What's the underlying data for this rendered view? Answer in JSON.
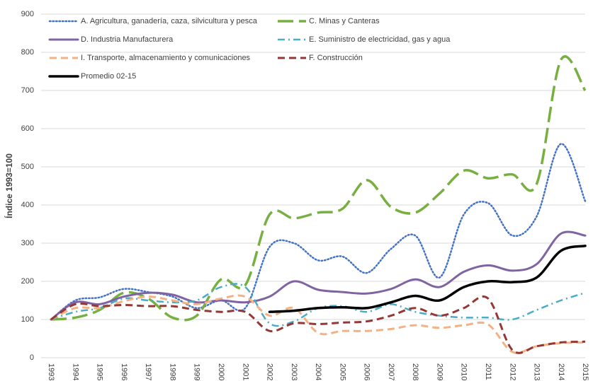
{
  "chart_data": {
    "type": "line",
    "y_label": "Índice 1993=100",
    "categories": [
      "1993",
      "1994",
      "1995",
      "1996",
      "1997",
      "1998",
      "1999",
      "2000",
      "2001",
      "2002",
      "2003",
      "2004",
      "2005",
      "2006",
      "2007",
      "2008",
      "2009",
      "2010",
      "2011",
      "2012",
      "2013",
      "2014",
      "2015"
    ],
    "ylim": [
      0,
      900
    ],
    "yticks": [
      0,
      100,
      200,
      300,
      400,
      500,
      600,
      700,
      800,
      900
    ],
    "grid": true,
    "legend": "top-left",
    "series": [
      {
        "name": "A. Agricultura, ganadería, caza, silvicultura y pesca",
        "color": "#4472c4",
        "style": "dotted",
        "values": [
          100,
          150,
          158,
          180,
          172,
          160,
          130,
          150,
          130,
          290,
          300,
          255,
          265,
          222,
          285,
          320,
          210,
          375,
          405,
          320,
          370,
          560,
          410
        ]
      },
      {
        "name": "C. Minas y Canteras",
        "color": "#77b041",
        "style": "long-dash",
        "values": [
          100,
          105,
          125,
          170,
          155,
          105,
          110,
          205,
          190,
          375,
          365,
          380,
          390,
          465,
          395,
          380,
          430,
          490,
          470,
          480,
          455,
          780,
          700
        ]
      },
      {
        "name": "D. Industria Manufacturera",
        "color": "#8064a2",
        "style": "solid",
        "values": [
          100,
          145,
          140,
          160,
          170,
          165,
          145,
          150,
          145,
          160,
          200,
          178,
          172,
          168,
          180,
          205,
          185,
          225,
          242,
          228,
          245,
          325,
          320
        ]
      },
      {
        "name": "E. Suministro de electricidad, gas y agua",
        "color": "#4bacc6",
        "style": "dash-dot",
        "values": [
          100,
          120,
          130,
          155,
          150,
          145,
          150,
          185,
          185,
          90,
          95,
          130,
          135,
          120,
          140,
          120,
          110,
          105,
          105,
          100,
          125,
          150,
          170
        ]
      },
      {
        "name": "I. Transporte, almacenamiento y comunicaciones",
        "color": "#f4b183",
        "style": "dash",
        "values": [
          100,
          130,
          130,
          148,
          160,
          150,
          140,
          155,
          160,
          110,
          130,
          65,
          70,
          70,
          75,
          85,
          78,
          85,
          87,
          15,
          30,
          38,
          40
        ]
      },
      {
        "name": "F. Construcción",
        "color": "#953735",
        "style": "dash",
        "values": [
          100,
          140,
          135,
          138,
          135,
          135,
          125,
          120,
          120,
          70,
          90,
          88,
          92,
          95,
          110,
          130,
          110,
          130,
          155,
          20,
          30,
          40,
          42
        ]
      },
      {
        "name": "Promedio 02-15",
        "color": "#000000",
        "style": "thick",
        "values": [
          null,
          null,
          null,
          null,
          null,
          null,
          null,
          null,
          null,
          120,
          123,
          130,
          132,
          130,
          145,
          162,
          150,
          185,
          200,
          198,
          210,
          280,
          293
        ]
      }
    ]
  }
}
